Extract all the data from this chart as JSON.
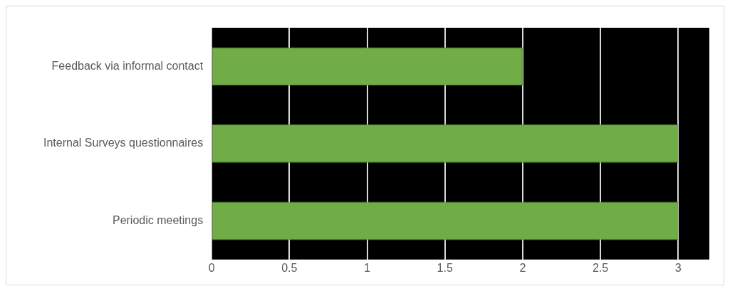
{
  "chart_data": {
    "type": "bar",
    "orientation": "horizontal",
    "categories": [
      "Feedback via informal contact",
      "Internal Surveys questionnaires",
      "Periodic meetings"
    ],
    "values": [
      2,
      3,
      3
    ],
    "color": "#70ad47",
    "xlim": [
      0,
      3.2
    ],
    "xticks": [
      0,
      0.5,
      1,
      1.5,
      2,
      2.5,
      3
    ],
    "grid": "x",
    "legend": false
  }
}
